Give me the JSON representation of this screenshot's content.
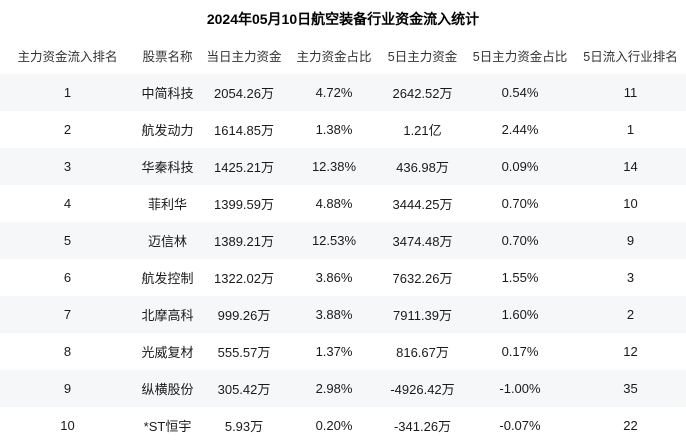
{
  "title": "2024年05月10日航空装备行业资金流入统计",
  "table": {
    "columns": [
      "主力资金流入排名",
      "股票名称",
      "当日主力资金",
      "主力资金占比",
      "5日主力资金",
      "5日主力资金占比",
      "5日流入行业排名"
    ],
    "rows": [
      {
        "rank": "1",
        "name": "中简科技",
        "today_fund": "2054.26万",
        "today_pct": "4.72%",
        "five_day_fund": "2642.52万",
        "five_day_pct": "0.54%",
        "industry_rank": "11"
      },
      {
        "rank": "2",
        "name": "航发动力",
        "today_fund": "1614.85万",
        "today_pct": "1.38%",
        "five_day_fund": "1.21亿",
        "five_day_pct": "2.44%",
        "industry_rank": "1"
      },
      {
        "rank": "3",
        "name": "华秦科技",
        "today_fund": "1425.21万",
        "today_pct": "12.38%",
        "five_day_fund": "436.98万",
        "five_day_pct": "0.09%",
        "industry_rank": "14"
      },
      {
        "rank": "4",
        "name": "菲利华",
        "today_fund": "1399.59万",
        "today_pct": "4.88%",
        "five_day_fund": "3444.25万",
        "five_day_pct": "0.70%",
        "industry_rank": "10"
      },
      {
        "rank": "5",
        "name": "迈信林",
        "today_fund": "1389.21万",
        "today_pct": "12.53%",
        "five_day_fund": "3474.48万",
        "five_day_pct": "0.70%",
        "industry_rank": "9"
      },
      {
        "rank": "6",
        "name": "航发控制",
        "today_fund": "1322.02万",
        "today_pct": "3.86%",
        "five_day_fund": "7632.26万",
        "five_day_pct": "1.55%",
        "industry_rank": "3"
      },
      {
        "rank": "7",
        "name": "北摩高科",
        "today_fund": "999.26万",
        "today_pct": "3.88%",
        "five_day_fund": "7911.39万",
        "five_day_pct": "1.60%",
        "industry_rank": "2"
      },
      {
        "rank": "8",
        "name": "光威复材",
        "today_fund": "555.57万",
        "today_pct": "1.37%",
        "five_day_fund": "816.67万",
        "five_day_pct": "0.17%",
        "industry_rank": "12"
      },
      {
        "rank": "9",
        "name": "纵横股份",
        "today_fund": "305.42万",
        "today_pct": "2.98%",
        "five_day_fund": "-4926.42万",
        "five_day_pct": "-1.00%",
        "industry_rank": "35"
      },
      {
        "rank": "10",
        "name": "*ST恒宇",
        "today_fund": "5.93万",
        "today_pct": "0.20%",
        "five_day_fund": "-341.26万",
        "five_day_pct": "-0.07%",
        "industry_rank": "22"
      }
    ]
  },
  "colors": {
    "background": "#ffffff",
    "row_alternate": "#f6f7f8",
    "header_text": "#333333",
    "body_text": "#1a1a1a"
  },
  "chart_data": {
    "type": "table",
    "title": "2024年05月10日航空装备行业资金流入统计",
    "columns": [
      "主力资金流入排名",
      "股票名称",
      "当日主力资金",
      "主力资金占比",
      "5日主力资金",
      "5日主力资金占比",
      "5日流入行业排名"
    ],
    "rows": [
      [
        "1",
        "中简科技",
        "2054.26万",
        "4.72%",
        "2642.52万",
        "0.54%",
        "11"
      ],
      [
        "2",
        "航发动力",
        "1614.85万",
        "1.38%",
        "1.21亿",
        "2.44%",
        "1"
      ],
      [
        "3",
        "华秦科技",
        "1425.21万",
        "12.38%",
        "436.98万",
        "0.09%",
        "14"
      ],
      [
        "4",
        "菲利华",
        "1399.59万",
        "4.88%",
        "3444.25万",
        "0.70%",
        "10"
      ],
      [
        "5",
        "迈信林",
        "1389.21万",
        "12.53%",
        "3474.48万",
        "0.70%",
        "9"
      ],
      [
        "6",
        "航发控制",
        "1322.02万",
        "3.86%",
        "7632.26万",
        "1.55%",
        "3"
      ],
      [
        "7",
        "北摩高科",
        "999.26万",
        "3.88%",
        "7911.39万",
        "1.60%",
        "2"
      ],
      [
        "8",
        "光威复材",
        "555.57万",
        "1.37%",
        "816.67万",
        "0.17%",
        "12"
      ],
      [
        "9",
        "纵横股份",
        "305.42万",
        "2.98%",
        "-4926.42万",
        "-1.00%",
        "35"
      ],
      [
        "10",
        "*ST恒宇",
        "5.93万",
        "0.20%",
        "-341.26万",
        "-0.07%",
        "22"
      ]
    ]
  }
}
